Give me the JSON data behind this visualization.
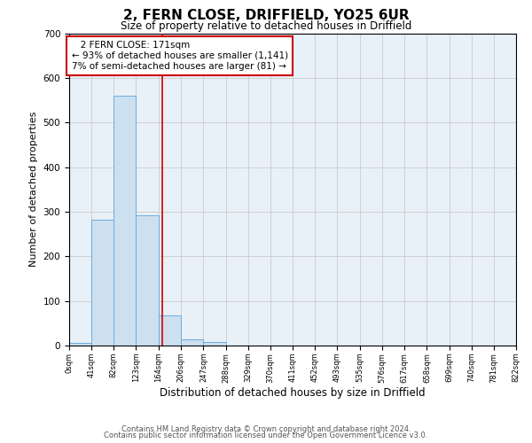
{
  "title": "2, FERN CLOSE, DRIFFIELD, YO25 6UR",
  "subtitle": "Size of property relative to detached houses in Driffield",
  "xlabel": "Distribution of detached houses by size in Driffield",
  "ylabel": "Number of detached properties",
  "bar_edges": [
    0,
    41,
    82,
    123,
    164,
    206,
    247,
    288,
    329,
    370,
    411,
    452,
    493,
    535,
    576,
    617,
    658,
    699,
    740,
    781,
    822
  ],
  "bar_heights": [
    5,
    282,
    560,
    292,
    68,
    14,
    8,
    0,
    0,
    0,
    0,
    0,
    0,
    0,
    0,
    0,
    0,
    0,
    0,
    0
  ],
  "bar_color": "#cde0f0",
  "bar_edge_color": "#6aacdc",
  "property_line_x": 171,
  "property_line_color": "#cc0000",
  "ylim": [
    0,
    700
  ],
  "yticks": [
    0,
    100,
    200,
    300,
    400,
    500,
    600,
    700
  ],
  "xtick_labels": [
    "0sqm",
    "41sqm",
    "82sqm",
    "123sqm",
    "164sqm",
    "206sqm",
    "247sqm",
    "288sqm",
    "329sqm",
    "370sqm",
    "411sqm",
    "452sqm",
    "493sqm",
    "535sqm",
    "576sqm",
    "617sqm",
    "658sqm",
    "699sqm",
    "740sqm",
    "781sqm",
    "822sqm"
  ],
  "annotation_title": "2 FERN CLOSE: 171sqm",
  "annotation_line1": "← 93% of detached houses are smaller (1,141)",
  "annotation_line2": "7% of semi-detached houses are larger (81) →",
  "annotation_box_color": "#ffffff",
  "annotation_box_edge_color": "#cc0000",
  "footer_line1": "Contains HM Land Registry data © Crown copyright and database right 2024.",
  "footer_line2": "Contains public sector information licensed under the Open Government Licence v3.0.",
  "grid_color": "#cccccc",
  "plot_bg_color": "#e8f0f8",
  "background_color": "#ffffff",
  "fig_width": 6.0,
  "fig_height": 5.0,
  "dpi": 100
}
